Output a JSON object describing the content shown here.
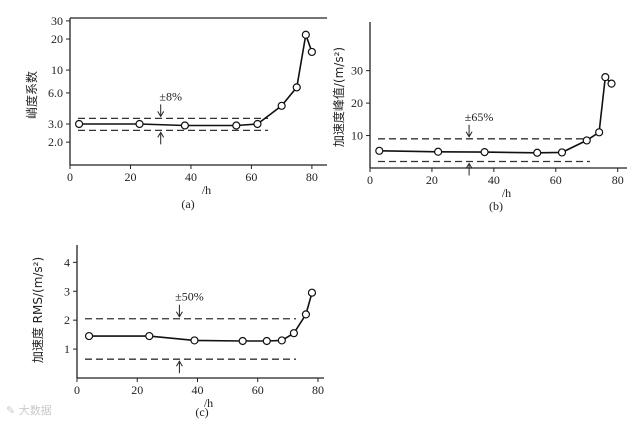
{
  "chart_data": [
    {
      "type": "line",
      "panel_label": "(a)",
      "xlabel": "/h",
      "ylabel": "峭度系数",
      "xlim": [
        0,
        85
      ],
      "ylim": [
        1.2,
        32
      ],
      "y_scale": "log",
      "xticks": [
        0,
        20,
        40,
        60,
        80
      ],
      "yticks": [
        2.0,
        3.0,
        6.0,
        10,
        20,
        30
      ],
      "ytick_labels": [
        "2.0",
        "3.0",
        "6.0",
        "10",
        "20",
        "30"
      ],
      "series": [
        {
          "x": [
            3,
            23,
            38,
            55,
            62,
            70,
            75,
            78,
            80
          ],
          "y": [
            3.0,
            3.0,
            2.9,
            2.9,
            3.0,
            4.5,
            6.8,
            22,
            15
          ]
        }
      ],
      "band": {
        "upper": 3.4,
        "lower": 2.6,
        "label": "±8%",
        "arrow_x": 30
      },
      "grid": false
    },
    {
      "type": "line",
      "panel_label": "(b)",
      "xlabel": "/h",
      "ylabel": "加速度峰值/(m/s²)",
      "xlim": [
        0,
        83
      ],
      "ylim": [
        0,
        45
      ],
      "xticks": [
        0,
        20,
        40,
        60,
        80
      ],
      "yticks": [
        10,
        20,
        30
      ],
      "ytick_labels": [
        "10",
        "20",
        "30"
      ],
      "series": [
        {
          "x": [
            3,
            22,
            37,
            54,
            62,
            70,
            74,
            76,
            78
          ],
          "y": [
            5.3,
            5.0,
            4.9,
            4.7,
            4.8,
            8.5,
            11,
            28,
            26
          ]
        }
      ],
      "band": {
        "upper": 9.0,
        "lower": 2.0,
        "label": "±65%",
        "arrow_x": 32
      },
      "grid": false
    },
    {
      "type": "line",
      "panel_label": "(c)",
      "xlabel": "/h",
      "ylabel": "加速度 RMS/(m/s²)",
      "xlim": [
        0,
        82
      ],
      "ylim": [
        0,
        4.6
      ],
      "xticks": [
        0,
        20,
        40,
        60,
        80
      ],
      "yticks": [
        1,
        2,
        3,
        4
      ],
      "ytick_labels": [
        "1",
        "2",
        "3",
        "4"
      ],
      "series": [
        {
          "x": [
            4,
            24,
            39,
            55,
            63,
            68,
            72,
            76,
            78
          ],
          "y": [
            1.45,
            1.45,
            1.3,
            1.28,
            1.28,
            1.3,
            1.55,
            2.2,
            2.95
          ]
        }
      ],
      "band": {
        "upper": 2.05,
        "lower": 0.65,
        "label": "±50%",
        "arrow_x": 34
      },
      "grid": false
    }
  ],
  "watermark": "大数据"
}
